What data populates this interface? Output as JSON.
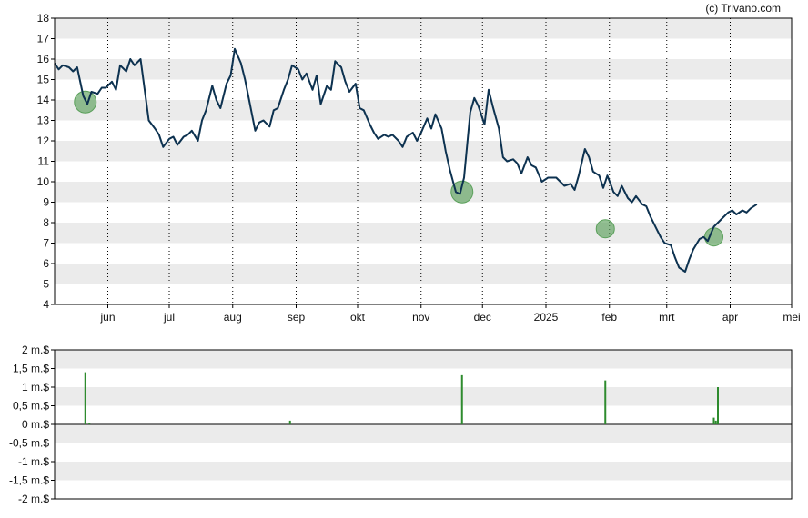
{
  "watermark": "(c) Trivano.com",
  "colors": {
    "line": "#0d3250",
    "band": "#ebebeb",
    "marker": "#5aa05a",
    "volume": "#2e8b2e",
    "vgrid": "#000000"
  },
  "chart_data": [
    {
      "type": "line",
      "title": "",
      "xlabel": "",
      "ylabel": "",
      "ylim": [
        4,
        18
      ],
      "yticks": [
        4,
        5,
        6,
        7,
        8,
        9,
        10,
        11,
        12,
        13,
        14,
        15,
        16,
        17,
        18
      ],
      "xlim": [
        "2024-05-06",
        "2025-05-01"
      ],
      "xticks": [
        {
          "label": "jun",
          "date": "2024-06-01"
        },
        {
          "label": "jul",
          "date": "2024-07-01"
        },
        {
          "label": "aug",
          "date": "2024-08-01"
        },
        {
          "label": "sep",
          "date": "2024-09-01"
        },
        {
          "label": "okt",
          "date": "2024-10-01"
        },
        {
          "label": "nov",
          "date": "2024-11-01"
        },
        {
          "label": "dec",
          "date": "2024-12-01"
        },
        {
          "label": "2025",
          "date": "2025-01-01"
        },
        {
          "label": "feb",
          "date": "2025-02-01"
        },
        {
          "label": "mrt",
          "date": "2025-03-01"
        },
        {
          "label": "apr",
          "date": "2025-04-01"
        },
        {
          "label": "mei",
          "date": "2025-05-01"
        }
      ],
      "grid": "alternating horizontal bands, dotted vertical lines at month starts",
      "series": [
        {
          "points": [
            [
              "2024-05-06",
              15.8
            ],
            [
              "2024-05-08",
              15.5
            ],
            [
              "2024-05-10",
              15.7
            ],
            [
              "2024-05-13",
              15.6
            ],
            [
              "2024-05-15",
              15.4
            ],
            [
              "2024-05-17",
              15.6
            ],
            [
              "2024-05-20",
              14.2
            ],
            [
              "2024-05-22",
              13.8
            ],
            [
              "2024-05-24",
              14.4
            ],
            [
              "2024-05-27",
              14.3
            ],
            [
              "2024-05-29",
              14.6
            ],
            [
              "2024-05-31",
              14.6
            ],
            [
              "2024-06-03",
              14.9
            ],
            [
              "2024-06-05",
              14.5
            ],
            [
              "2024-06-07",
              15.7
            ],
            [
              "2024-06-10",
              15.4
            ],
            [
              "2024-06-12",
              16.0
            ],
            [
              "2024-06-14",
              15.7
            ],
            [
              "2024-06-17",
              16.0
            ],
            [
              "2024-06-19",
              14.5
            ],
            [
              "2024-06-21",
              13.0
            ],
            [
              "2024-06-24",
              12.6
            ],
            [
              "2024-06-26",
              12.3
            ],
            [
              "2024-06-28",
              11.7
            ],
            [
              "2024-07-01",
              12.1
            ],
            [
              "2024-07-03",
              12.2
            ],
            [
              "2024-07-05",
              11.8
            ],
            [
              "2024-07-08",
              12.2
            ],
            [
              "2024-07-10",
              12.3
            ],
            [
              "2024-07-12",
              12.5
            ],
            [
              "2024-07-15",
              12.0
            ],
            [
              "2024-07-17",
              13.0
            ],
            [
              "2024-07-19",
              13.5
            ],
            [
              "2024-07-22",
              14.7
            ],
            [
              "2024-07-24",
              14.0
            ],
            [
              "2024-07-26",
              13.6
            ],
            [
              "2024-07-29",
              14.8
            ],
            [
              "2024-07-31",
              15.2
            ],
            [
              "2024-08-02",
              16.5
            ],
            [
              "2024-08-05",
              15.8
            ],
            [
              "2024-08-07",
              15.0
            ],
            [
              "2024-08-09",
              14.0
            ],
            [
              "2024-08-12",
              12.5
            ],
            [
              "2024-08-14",
              12.9
            ],
            [
              "2024-08-16",
              13.0
            ],
            [
              "2024-08-19",
              12.7
            ],
            [
              "2024-08-21",
              13.5
            ],
            [
              "2024-08-23",
              13.6
            ],
            [
              "2024-08-26",
              14.5
            ],
            [
              "2024-08-28",
              15.0
            ],
            [
              "2024-08-30",
              15.7
            ],
            [
              "2024-09-02",
              15.5
            ],
            [
              "2024-09-04",
              15.0
            ],
            [
              "2024-09-06",
              15.3
            ],
            [
              "2024-09-09",
              14.5
            ],
            [
              "2024-09-11",
              15.2
            ],
            [
              "2024-09-13",
              13.8
            ],
            [
              "2024-09-16",
              14.7
            ],
            [
              "2024-09-18",
              14.5
            ],
            [
              "2024-09-20",
              15.9
            ],
            [
              "2024-09-23",
              15.6
            ],
            [
              "2024-09-25",
              14.9
            ],
            [
              "2024-09-27",
              14.4
            ],
            [
              "2024-09-30",
              14.8
            ],
            [
              "2024-10-02",
              13.6
            ],
            [
              "2024-10-04",
              13.5
            ],
            [
              "2024-10-07",
              12.8
            ],
            [
              "2024-10-09",
              12.4
            ],
            [
              "2024-10-11",
              12.1
            ],
            [
              "2024-10-14",
              12.3
            ],
            [
              "2024-10-16",
              12.2
            ],
            [
              "2024-10-18",
              12.3
            ],
            [
              "2024-10-21",
              12.0
            ],
            [
              "2024-10-23",
              11.7
            ],
            [
              "2024-10-25",
              12.2
            ],
            [
              "2024-10-28",
              12.4
            ],
            [
              "2024-10-30",
              12.0
            ],
            [
              "2024-11-01",
              12.4
            ],
            [
              "2024-11-04",
              13.1
            ],
            [
              "2024-11-06",
              12.6
            ],
            [
              "2024-11-08",
              13.3
            ],
            [
              "2024-11-11",
              12.6
            ],
            [
              "2024-11-13",
              11.5
            ],
            [
              "2024-11-15",
              10.6
            ],
            [
              "2024-11-18",
              9.5
            ],
            [
              "2024-11-20",
              9.4
            ],
            [
              "2024-11-22",
              10.2
            ],
            [
              "2024-11-25",
              13.4
            ],
            [
              "2024-11-27",
              14.1
            ],
            [
              "2024-11-29",
              13.7
            ],
            [
              "2024-12-02",
              12.8
            ],
            [
              "2024-12-04",
              14.5
            ],
            [
              "2024-12-06",
              13.7
            ],
            [
              "2024-12-09",
              12.6
            ],
            [
              "2024-12-11",
              11.2
            ],
            [
              "2024-12-13",
              11.0
            ],
            [
              "2024-12-16",
              11.1
            ],
            [
              "2024-12-18",
              10.9
            ],
            [
              "2024-12-20",
              10.4
            ],
            [
              "2024-12-23",
              11.2
            ],
            [
              "2024-12-25",
              10.8
            ],
            [
              "2024-12-27",
              10.7
            ],
            [
              "2024-12-30",
              10.0
            ],
            [
              "2025-01-02",
              10.2
            ],
            [
              "2025-01-06",
              10.2
            ],
            [
              "2025-01-08",
              10.0
            ],
            [
              "2025-01-10",
              9.8
            ],
            [
              "2025-01-13",
              9.9
            ],
            [
              "2025-01-15",
              9.6
            ],
            [
              "2025-01-17",
              10.3
            ],
            [
              "2025-01-20",
              11.6
            ],
            [
              "2025-01-22",
              11.2
            ],
            [
              "2025-01-24",
              10.5
            ],
            [
              "2025-01-27",
              10.3
            ],
            [
              "2025-01-29",
              9.7
            ],
            [
              "2025-01-31",
              10.3
            ],
            [
              "2025-02-03",
              9.5
            ],
            [
              "2025-02-05",
              9.3
            ],
            [
              "2025-02-07",
              9.8
            ],
            [
              "2025-02-10",
              9.2
            ],
            [
              "2025-02-12",
              9.0
            ],
            [
              "2025-02-14",
              9.3
            ],
            [
              "2025-02-17",
              8.9
            ],
            [
              "2025-02-19",
              8.8
            ],
            [
              "2025-02-21",
              8.3
            ],
            [
              "2025-02-24",
              7.7
            ],
            [
              "2025-02-26",
              7.3
            ],
            [
              "2025-02-28",
              7.0
            ],
            [
              "2025-03-03",
              6.9
            ],
            [
              "2025-03-05",
              6.3
            ],
            [
              "2025-03-07",
              5.8
            ],
            [
              "2025-03-10",
              5.6
            ],
            [
              "2025-03-12",
              6.2
            ],
            [
              "2025-03-14",
              6.7
            ],
            [
              "2025-03-17",
              7.2
            ],
            [
              "2025-03-19",
              7.3
            ],
            [
              "2025-03-21",
              7.1
            ],
            [
              "2025-03-24",
              7.8
            ],
            [
              "2025-03-26",
              8.0
            ],
            [
              "2025-03-28",
              8.2
            ],
            [
              "2025-03-31",
              8.5
            ],
            [
              "2025-04-02",
              8.6
            ],
            [
              "2025-04-04",
              8.4
            ],
            [
              "2025-04-07",
              8.6
            ],
            [
              "2025-04-09",
              8.5
            ],
            [
              "2025-04-11",
              8.7
            ],
            [
              "2025-04-14",
              8.9
            ]
          ]
        }
      ],
      "markers": [
        {
          "date": "2024-05-21",
          "value": 13.9,
          "size": "large"
        },
        {
          "date": "2024-11-21",
          "value": 9.5,
          "size": "large"
        },
        {
          "date": "2025-01-30",
          "value": 7.7,
          "size": "small"
        },
        {
          "date": "2025-03-24",
          "value": 7.3,
          "size": "small"
        }
      ]
    },
    {
      "type": "bar",
      "title": "",
      "xlabel": "",
      "ylabel": "",
      "unit": "m.$",
      "ylim": [
        -2,
        2
      ],
      "yticks": [
        {
          "value": 2,
          "label": "2 m.$"
        },
        {
          "value": 1.5,
          "label": "1,5 m.$"
        },
        {
          "value": 1,
          "label": "1 m.$"
        },
        {
          "value": 0.5,
          "label": "0,5 m.$"
        },
        {
          "value": 0,
          "label": "0 m.$"
        },
        {
          "value": -0.5,
          "label": "-0,5 m.$"
        },
        {
          "value": -1,
          "label": "-1 m.$"
        },
        {
          "value": -1.5,
          "label": "-1,5 m.$"
        },
        {
          "value": -2,
          "label": "-2 m.$"
        }
      ],
      "bars": [
        {
          "date": "2024-05-21",
          "value": 1.4
        },
        {
          "date": "2024-05-23",
          "value": 0.03
        },
        {
          "date": "2024-08-29",
          "value": 0.1
        },
        {
          "date": "2024-11-21",
          "value": 1.32
        },
        {
          "date": "2025-01-30",
          "value": 1.18
        },
        {
          "date": "2025-03-24",
          "value": 0.18
        },
        {
          "date": "2025-03-25",
          "value": 0.1
        },
        {
          "date": "2025-03-26",
          "value": 1.0
        }
      ]
    }
  ]
}
